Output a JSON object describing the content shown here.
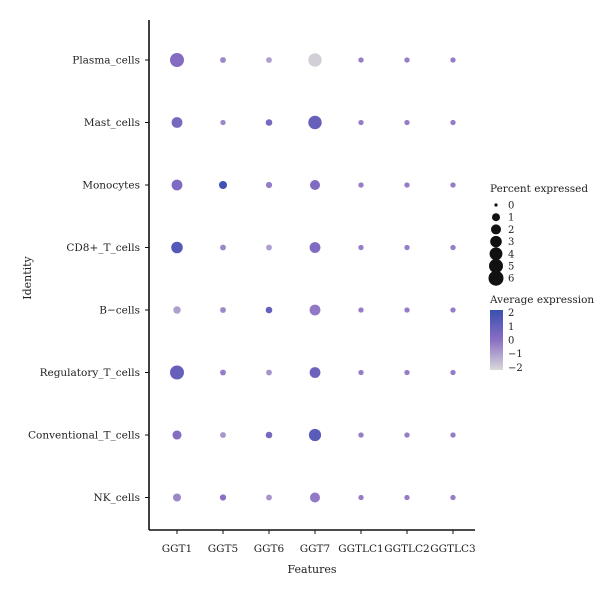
{
  "chart_data": {
    "type": "scatter",
    "subtype": "dot-plot",
    "xlabel": "Features",
    "ylabel": "Identity",
    "features": [
      "GGT1",
      "GGT5",
      "GGT6",
      "GGT7",
      "GGTLC1",
      "GGTLC2",
      "GGTLC3"
    ],
    "identities": [
      "Plasma_cells",
      "Mast_cells",
      "Monocytes",
      "CD8+_T_cells",
      "B−cells",
      "Regulatory_T_cells",
      "Conventional_T_cells",
      "NK_cells"
    ],
    "points": [
      {
        "identity": "Plasma_cells",
        "feature": "GGT1",
        "pct": 5.0,
        "avg": 0.2
      },
      {
        "identity": "Plasma_cells",
        "feature": "GGT5",
        "pct": 0.3,
        "avg": -0.5
      },
      {
        "identity": "Plasma_cells",
        "feature": "GGT6",
        "pct": 0.3,
        "avg": -1.0
      },
      {
        "identity": "Plasma_cells",
        "feature": "GGT7",
        "pct": 4.5,
        "avg": -2.0
      },
      {
        "identity": "Plasma_cells",
        "feature": "GGTLC1",
        "pct": 0.2,
        "avg": -0.3
      },
      {
        "identity": "Plasma_cells",
        "feature": "GGTLC2",
        "pct": 0.2,
        "avg": -0.3
      },
      {
        "identity": "Plasma_cells",
        "feature": "GGTLC3",
        "pct": 0.2,
        "avg": -0.3
      },
      {
        "identity": "Mast_cells",
        "feature": "GGT1",
        "pct": 2.5,
        "avg": 0.5
      },
      {
        "identity": "Mast_cells",
        "feature": "GGT5",
        "pct": 0.2,
        "avg": -0.5
      },
      {
        "identity": "Mast_cells",
        "feature": "GGT6",
        "pct": 0.5,
        "avg": 0.5
      },
      {
        "identity": "Mast_cells",
        "feature": "GGT7",
        "pct": 4.5,
        "avg": 1.0
      },
      {
        "identity": "Mast_cells",
        "feature": "GGTLC1",
        "pct": 0.2,
        "avg": -0.3
      },
      {
        "identity": "Mast_cells",
        "feature": "GGTLC2",
        "pct": 0.2,
        "avg": -0.3
      },
      {
        "identity": "Mast_cells",
        "feature": "GGTLC3",
        "pct": 0.2,
        "avg": -0.3
      },
      {
        "identity": "Monocytes",
        "feature": "GGT1",
        "pct": 2.5,
        "avg": 0.3
      },
      {
        "identity": "Monocytes",
        "feature": "GGT5",
        "pct": 1.0,
        "avg": 2.0
      },
      {
        "identity": "Monocytes",
        "feature": "GGT6",
        "pct": 0.4,
        "avg": -0.3
      },
      {
        "identity": "Monocytes",
        "feature": "GGT7",
        "pct": 2.0,
        "avg": 0.3
      },
      {
        "identity": "Monocytes",
        "feature": "GGTLC1",
        "pct": 0.2,
        "avg": -0.3
      },
      {
        "identity": "Monocytes",
        "feature": "GGTLC2",
        "pct": 0.2,
        "avg": -0.3
      },
      {
        "identity": "Monocytes",
        "feature": "GGTLC3",
        "pct": 0.2,
        "avg": -0.3
      },
      {
        "identity": "CD8+_T_cells",
        "feature": "GGT1",
        "pct": 3.0,
        "avg": 1.5
      },
      {
        "identity": "CD8+_T_cells",
        "feature": "GGT5",
        "pct": 0.3,
        "avg": -0.5
      },
      {
        "identity": "CD8+_T_cells",
        "feature": "GGT6",
        "pct": 0.3,
        "avg": -1.0
      },
      {
        "identity": "CD8+_T_cells",
        "feature": "GGT7",
        "pct": 2.5,
        "avg": 0.3
      },
      {
        "identity": "CD8+_T_cells",
        "feature": "GGTLC1",
        "pct": 0.2,
        "avg": -0.3
      },
      {
        "identity": "CD8+_T_cells",
        "feature": "GGTLC2",
        "pct": 0.2,
        "avg": -0.3
      },
      {
        "identity": "CD8+_T_cells",
        "feature": "GGTLC3",
        "pct": 0.2,
        "avg": -0.3
      },
      {
        "identity": "B−cells",
        "feature": "GGT1",
        "pct": 0.8,
        "avg": -1.0
      },
      {
        "identity": "B−cells",
        "feature": "GGT5",
        "pct": 0.3,
        "avg": -0.5
      },
      {
        "identity": "B−cells",
        "feature": "GGT6",
        "pct": 0.5,
        "avg": 1.0
      },
      {
        "identity": "B−cells",
        "feature": "GGT7",
        "pct": 2.5,
        "avg": -0.2
      },
      {
        "identity": "B−cells",
        "feature": "GGTLC1",
        "pct": 0.2,
        "avg": -0.3
      },
      {
        "identity": "B−cells",
        "feature": "GGTLC2",
        "pct": 0.2,
        "avg": -0.3
      },
      {
        "identity": "B−cells",
        "feature": "GGTLC3",
        "pct": 0.2,
        "avg": -0.3
      },
      {
        "identity": "Regulatory_T_cells",
        "feature": "GGT1",
        "pct": 5.0,
        "avg": 1.0
      },
      {
        "identity": "Regulatory_T_cells",
        "feature": "GGT5",
        "pct": 0.3,
        "avg": -0.3
      },
      {
        "identity": "Regulatory_T_cells",
        "feature": "GGT6",
        "pct": 0.3,
        "avg": -0.8
      },
      {
        "identity": "Regulatory_T_cells",
        "feature": "GGT7",
        "pct": 2.5,
        "avg": 0.8
      },
      {
        "identity": "Regulatory_T_cells",
        "feature": "GGTLC1",
        "pct": 0.2,
        "avg": -0.3
      },
      {
        "identity": "Regulatory_T_cells",
        "feature": "GGTLC2",
        "pct": 0.2,
        "avg": -0.3
      },
      {
        "identity": "Regulatory_T_cells",
        "feature": "GGTLC3",
        "pct": 0.2,
        "avg": -0.3
      },
      {
        "identity": "Conventional_T_cells",
        "feature": "GGT1",
        "pct": 1.5,
        "avg": 0.2
      },
      {
        "identity": "Conventional_T_cells",
        "feature": "GGT5",
        "pct": 0.3,
        "avg": -0.8
      },
      {
        "identity": "Conventional_T_cells",
        "feature": "GGT6",
        "pct": 0.5,
        "avg": 0.5
      },
      {
        "identity": "Conventional_T_cells",
        "feature": "GGT7",
        "pct": 3.5,
        "avg": 1.3
      },
      {
        "identity": "Conventional_T_cells",
        "feature": "GGTLC1",
        "pct": 0.2,
        "avg": -0.3
      },
      {
        "identity": "Conventional_T_cells",
        "feature": "GGTLC2",
        "pct": 0.2,
        "avg": -0.3
      },
      {
        "identity": "Conventional_T_cells",
        "feature": "GGTLC3",
        "pct": 0.2,
        "avg": -0.3
      },
      {
        "identity": "NK_cells",
        "feature": "GGT1",
        "pct": 1.0,
        "avg": -0.5
      },
      {
        "identity": "NK_cells",
        "feature": "GGT5",
        "pct": 0.4,
        "avg": 0.0
      },
      {
        "identity": "NK_cells",
        "feature": "GGT6",
        "pct": 0.3,
        "avg": -0.8
      },
      {
        "identity": "NK_cells",
        "feature": "GGT7",
        "pct": 2.0,
        "avg": -0.2
      },
      {
        "identity": "NK_cells",
        "feature": "GGTLC1",
        "pct": 0.2,
        "avg": -0.3
      },
      {
        "identity": "NK_cells",
        "feature": "GGTLC2",
        "pct": 0.2,
        "avg": -0.3
      },
      {
        "identity": "NK_cells",
        "feature": "GGTLC3",
        "pct": 0.2,
        "avg": -0.3
      }
    ],
    "size_legend": {
      "title": "Percent expressed",
      "values": [
        0,
        1,
        2,
        3,
        4,
        5,
        6
      ]
    },
    "color_legend": {
      "title": "Average expression",
      "ticks": [
        2,
        1,
        0,
        -1,
        -2
      ],
      "tick_labels": [
        "2",
        "1",
        "0",
        "−1",
        "−2"
      ],
      "range": [
        -2.2,
        2.2
      ],
      "low_color": "#d9d9d9",
      "high_color": "#3a4fb0"
    },
    "grid": false,
    "legend_position": "right"
  }
}
